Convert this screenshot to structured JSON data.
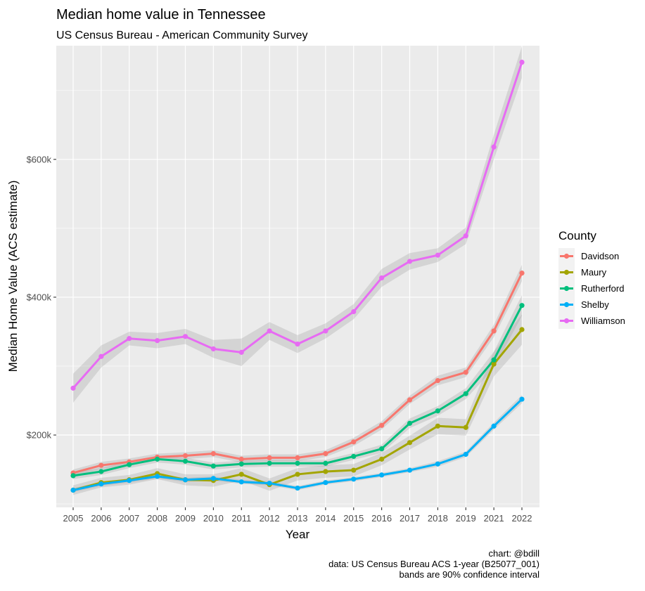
{
  "title": "Median home value in Tennessee",
  "subtitle": "US Census Bureau - American Community Survey",
  "caption": [
    "chart: @bdill",
    "data: US Census Bureau ACS 1-year (B25077_001)",
    "bands are 90% confidence interval"
  ],
  "chart_data": {
    "type": "line",
    "xlabel": "Year",
    "ylabel": "Median Home Value (ACS estimate)",
    "categories": [
      "2005",
      "2006",
      "2007",
      "2008",
      "2009",
      "2010",
      "2011",
      "2012",
      "2013",
      "2014",
      "2015",
      "2016",
      "2017",
      "2018",
      "2019",
      "2021",
      "2022"
    ],
    "ylim": [
      95000,
      765000
    ],
    "yticks": [
      200000,
      400000,
      600000
    ],
    "ytick_labels": [
      "$200k",
      "$400k",
      "$600k"
    ],
    "legend_title": "County",
    "legend_position": "right",
    "grid": true,
    "band_note": "90% confidence interval shown as grey ribbon",
    "series": [
      {
        "name": "Davidson",
        "color": "#F8766D",
        "values": [
          145000,
          156000,
          161000,
          168000,
          170000,
          173000,
          165000,
          167000,
          167000,
          173000,
          190000,
          214000,
          251000,
          279000,
          291000,
          351000,
          435000
        ],
        "moe": [
          5000,
          5000,
          5000,
          5000,
          5000,
          5000,
          5000,
          5000,
          5000,
          5000,
          6000,
          6000,
          6000,
          7000,
          7000,
          9000,
          12000
        ]
      },
      {
        "name": "Maury",
        "color": "#A3A500",
        "values": [
          120000,
          131000,
          135000,
          144000,
          135000,
          134000,
          143000,
          128000,
          143000,
          147000,
          149000,
          165000,
          189000,
          213000,
          211000,
          303000,
          353000
        ],
        "moe": [
          7000,
          7000,
          7000,
          8000,
          8000,
          9000,
          9000,
          9000,
          9000,
          9000,
          9000,
          9000,
          10000,
          12000,
          12000,
          18000,
          22000
        ]
      },
      {
        "name": "Rutherford",
        "color": "#00BF7D",
        "values": [
          141000,
          147000,
          157000,
          165000,
          162000,
          155000,
          158000,
          159000,
          159000,
          159000,
          169000,
          180000,
          217000,
          235000,
          260000,
          309000,
          388000
        ],
        "moe": [
          5000,
          5000,
          5000,
          5000,
          5000,
          5000,
          5000,
          5000,
          5000,
          5000,
          5000,
          6000,
          7000,
          7000,
          8000,
          12000,
          15000
        ]
      },
      {
        "name": "Shelby",
        "color": "#00B0F6",
        "values": [
          120000,
          129000,
          134000,
          140000,
          135000,
          137000,
          132000,
          130000,
          123000,
          131000,
          136000,
          142000,
          149000,
          158000,
          172000,
          213000,
          252000
        ],
        "moe": [
          3000,
          3000,
          3000,
          3000,
          3000,
          3000,
          3000,
          3000,
          3000,
          3000,
          3000,
          3000,
          3000,
          4000,
          4000,
          5000,
          6000
        ]
      },
      {
        "name": "Williamson",
        "color": "#E76BF3",
        "values": [
          268000,
          314000,
          340000,
          337000,
          343000,
          325000,
          320000,
          351000,
          332000,
          351000,
          379000,
          428000,
          452000,
          461000,
          489000,
          618000,
          741000
        ],
        "moe": [
          21000,
          16000,
          10000,
          11000,
          11000,
          13000,
          20000,
          13000,
          13000,
          11000,
          11000,
          13000,
          12000,
          10000,
          12000,
          18000,
          23000
        ]
      }
    ]
  }
}
